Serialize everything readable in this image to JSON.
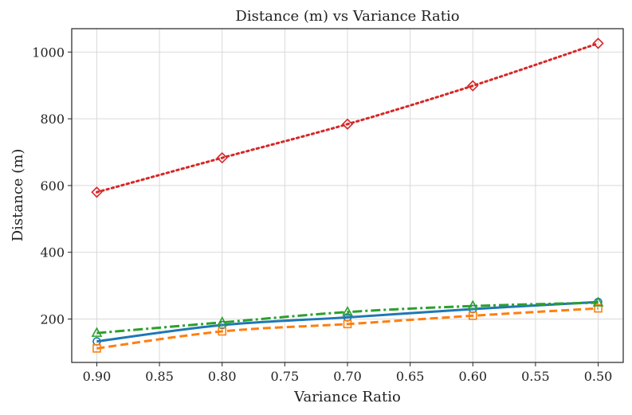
{
  "chart_data": {
    "type": "line",
    "title": "Distance (m) vs Variance Ratio",
    "xlabel": "Variance Ratio",
    "ylabel": "Distance (m)",
    "x": [
      0.9,
      0.8,
      0.7,
      0.6,
      0.5
    ],
    "xlim": [
      0.92,
      0.48
    ],
    "ylim": [
      70,
      1070
    ],
    "x_reversed": true,
    "xticks": [
      0.9,
      0.85,
      0.8,
      0.75,
      0.7,
      0.65,
      0.6,
      0.55,
      0.5
    ],
    "xtick_labels": [
      "0.90",
      "0.85",
      "0.80",
      "0.75",
      "0.70",
      "0.65",
      "0.60",
      "0.55",
      "0.50"
    ],
    "yticks": [
      200,
      400,
      600,
      800,
      1000
    ],
    "ytick_labels": [
      "200",
      "400",
      "600",
      "800",
      "1000"
    ],
    "grid": true,
    "series": [
      {
        "values": [
          133,
          182,
          205,
          230,
          251
        ],
        "color": "#1f77b4",
        "dash": "solid",
        "marker": "circle"
      },
      {
        "values": [
          112,
          163,
          185,
          210,
          232
        ],
        "color": "#ff7f0e",
        "dash": "dashed",
        "marker": "square"
      },
      {
        "values": [
          158,
          190,
          221,
          239,
          249
        ],
        "color": "#2ca02c",
        "dash": "dashdot",
        "marker": "triangle"
      },
      {
        "values": [
          580,
          683,
          784,
          899,
          1026
        ],
        "color": "#d62728",
        "dash": "dotted",
        "marker": "diamond"
      }
    ]
  }
}
